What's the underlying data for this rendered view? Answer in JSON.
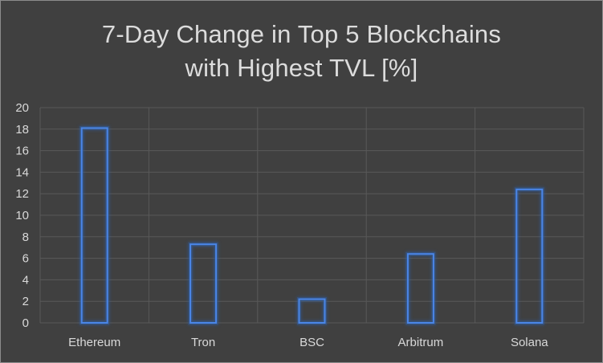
{
  "chart_data": {
    "type": "bar",
    "title_lines": [
      "7-Day Change in Top 5 Blockchains",
      "with Highest TVL [%]"
    ],
    "categories": [
      "Ethereum",
      "Tron",
      "BSC",
      "Arbitrum",
      "Solana"
    ],
    "values": [
      18.1,
      7.3,
      2.2,
      6.4,
      12.4
    ],
    "ylim": [
      0,
      20
    ],
    "yticks": [
      "0",
      "2",
      "4",
      "6",
      "8",
      "10",
      "12",
      "14",
      "16",
      "18",
      "20"
    ],
    "grid": true,
    "legend": "none",
    "colors": {
      "background": "#404040",
      "bar_outline": "#4a86e8",
      "bar_glow": "#2f5ea8",
      "gridline": "#595959",
      "text": "#d9d9d9"
    }
  }
}
